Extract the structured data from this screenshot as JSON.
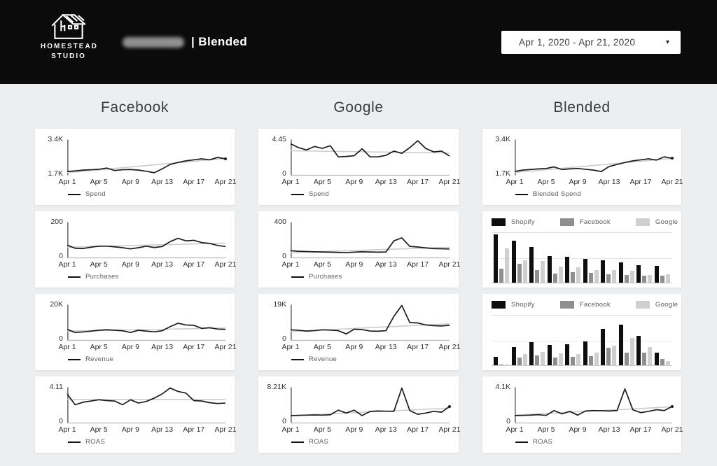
{
  "header": {
    "logo_line1": "HOMESTEAD",
    "logo_line2": "STUDIO",
    "report_title": "| Blended",
    "date_range": "Apr 1, 2020 - Apr 21, 2020"
  },
  "colors": {
    "page_bg": "#eceef0",
    "header_bg": "#0b0b0b",
    "card_bg": "#ffffff",
    "series_line": "#1b1b1b",
    "trend_line": "#cccccc",
    "axis_line": "#4a4a4a",
    "baseline": "#b9b9b9",
    "bar_shopify": "#0e0e0e",
    "bar_facebook": "#8f8f8f",
    "bar_google": "#cfcfcf"
  },
  "columns": [
    {
      "title": "Facebook",
      "chart_ids": [
        "fb_spend",
        "fb_purchases",
        "fb_revenue",
        "fb_roas"
      ]
    },
    {
      "title": "Google",
      "chart_ids": [
        "g_spend",
        "g_purchases",
        "g_revenue",
        "g_roas"
      ]
    },
    {
      "title": "Blended",
      "chart_ids": [
        "bl_spend",
        "bl_mix_top",
        "bl_mix_bottom",
        "bl_roas"
      ]
    }
  ],
  "chart_data": [
    {
      "id": "fb_spend",
      "type": "line",
      "column": "Facebook",
      "legend": "Spend",
      "y_top_label": "3.4K",
      "y_bottom_label": "1.7K",
      "y_min": 1.7,
      "y_max": 3.4,
      "x_ticks": [
        "Apr 1",
        "Apr 5",
        "Apr 9",
        "Apr 13",
        "Apr 17",
        "Apr 21"
      ],
      "values": [
        1.85,
        1.88,
        1.92,
        1.94,
        1.96,
        2.02,
        1.9,
        1.94,
        1.95,
        1.92,
        1.86,
        1.79,
        1.98,
        2.2,
        2.3,
        2.38,
        2.43,
        2.48,
        2.43,
        2.55,
        2.48
      ],
      "trend": [
        1.79,
        2.5
      ],
      "baseline": false,
      "end_dot": true
    },
    {
      "id": "fb_purchases",
      "type": "line",
      "column": "Facebook",
      "legend": "Purchases",
      "y_top_label": "200",
      "y_bottom_label": "0",
      "y_min": 0,
      "y_max": 200,
      "x_ticks": [
        "Apr 1",
        "Apr 5",
        "Apr 9",
        "Apr 13",
        "Apr 17",
        "Apr 21"
      ],
      "values": [
        70,
        52,
        50,
        58,
        64,
        64,
        60,
        55,
        48,
        55,
        64,
        56,
        62,
        90,
        110,
        95,
        98,
        85,
        80,
        68,
        62
      ],
      "trend": [
        58,
        82
      ],
      "baseline": true,
      "end_dot": false
    },
    {
      "id": "fb_revenue",
      "type": "line",
      "column": "Facebook",
      "legend": "Revenue",
      "y_top_label": "20K",
      "y_bottom_label": "0",
      "y_min": 0,
      "y_max": 20,
      "x_ticks": [
        "Apr 1",
        "Apr 5",
        "Apr 9",
        "Apr 13",
        "Apr 17",
        "Apr 21"
      ],
      "values": [
        6.0,
        4.2,
        4.5,
        5.0,
        5.5,
        5.8,
        5.5,
        5.2,
        4.2,
        5.5,
        5.0,
        4.6,
        5.2,
        7.6,
        9.6,
        8.6,
        8.4,
        6.6,
        7.0,
        6.2,
        6.0
      ],
      "trend": [
        5.0,
        6.8
      ],
      "baseline": true,
      "end_dot": false
    },
    {
      "id": "fb_roas",
      "type": "line",
      "column": "Facebook",
      "legend": "ROAS",
      "y_top_label": "4.11",
      "y_bottom_label": "0",
      "y_min": 0,
      "y_max": 4.11,
      "x_ticks": [
        "Apr 1",
        "Apr 5",
        "Apr 9",
        "Apr 13",
        "Apr 17",
        "Apr 21"
      ],
      "values": [
        3.4,
        2.1,
        2.4,
        2.55,
        2.7,
        2.6,
        2.55,
        2.1,
        2.7,
        2.3,
        2.5,
        2.9,
        3.4,
        4.11,
        3.7,
        3.5,
        2.6,
        2.55,
        2.35,
        2.25,
        2.3
      ],
      "trend": [
        2.72,
        2.72
      ],
      "baseline": true,
      "end_dot": false
    },
    {
      "id": "g_spend",
      "type": "line",
      "column": "Google",
      "legend": "Spend",
      "y_top_label": "4.45",
      "y_bottom_label": "0",
      "y_min": 0,
      "y_max": 4.45,
      "x_ticks": [
        "Apr 1",
        "Apr 5",
        "Apr 9",
        "Apr 13",
        "Apr 17",
        "Apr 21"
      ],
      "values": [
        4.0,
        3.5,
        3.2,
        3.65,
        3.4,
        3.75,
        2.3,
        2.35,
        2.45,
        3.35,
        2.3,
        2.3,
        2.5,
        3.05,
        2.75,
        3.5,
        4.4,
        3.4,
        2.95,
        3.05,
        2.4
      ],
      "trend": [
        3.1,
        2.8
      ],
      "baseline": true,
      "end_dot": false
    },
    {
      "id": "g_purchases",
      "type": "line",
      "column": "Google",
      "legend": "Purchases",
      "y_top_label": "400",
      "y_bottom_label": "0",
      "y_min": 0,
      "y_max": 400,
      "x_ticks": [
        "Apr 1",
        "Apr 5",
        "Apr 9",
        "Apr 13",
        "Apr 17",
        "Apr 21"
      ],
      "values": [
        75,
        68,
        65,
        62,
        60,
        58,
        55,
        52,
        58,
        62,
        60,
        58,
        60,
        190,
        225,
        125,
        118,
        108,
        100,
        97,
        95
      ],
      "trend": [
        52,
        115
      ],
      "baseline": true,
      "end_dot": false
    },
    {
      "id": "g_revenue",
      "type": "line",
      "column": "Google",
      "legend": "Revenue",
      "y_top_label": "19K",
      "y_bottom_label": "0",
      "y_min": 0,
      "y_max": 19,
      "x_ticks": [
        "Apr 1",
        "Apr 5",
        "Apr 9",
        "Apr 13",
        "Apr 17",
        "Apr 21"
      ],
      "values": [
        5.5,
        5.2,
        4.8,
        5.0,
        5.5,
        5.3,
        5.0,
        3.2,
        5.8,
        5.6,
        4.8,
        4.7,
        5.0,
        13.0,
        19.0,
        9.5,
        9.3,
        8.2,
        7.8,
        7.6,
        8.0
      ],
      "trend": [
        4.5,
        8.8
      ],
      "baseline": true,
      "end_dot": false
    },
    {
      "id": "g_roas",
      "type": "line",
      "column": "Google",
      "legend": "ROAS",
      "y_top_label": "8.21K",
      "y_bottom_label": "0",
      "y_min": 0,
      "y_max": 8.21,
      "x_ticks": [
        "Apr 1",
        "Apr 5",
        "Apr 9",
        "Apr 13",
        "Apr 17",
        "Apr 21"
      ],
      "values": [
        1.6,
        1.65,
        1.7,
        1.75,
        1.7,
        1.8,
        2.9,
        2.2,
        2.9,
        1.6,
        2.6,
        2.7,
        2.65,
        2.6,
        8.2,
        2.8,
        1.9,
        2.2,
        2.6,
        2.4,
        3.8
      ],
      "trend": [
        1.55,
        3.4
      ],
      "baseline": true,
      "end_dot": true
    },
    {
      "id": "bl_spend",
      "type": "line",
      "column": "Blended",
      "legend": "Blended Spend",
      "y_top_label": "3.4K",
      "y_bottom_label": "1.7K",
      "y_min": 1.7,
      "y_max": 3.4,
      "x_ticks": [
        "Apr 1",
        "Apr 5",
        "Apr 9",
        "Apr 13",
        "Apr 17",
        "Apr 21"
      ],
      "values": [
        1.85,
        1.92,
        1.95,
        1.98,
        2.0,
        2.08,
        1.95,
        1.98,
        2.0,
        1.96,
        1.92,
        1.85,
        2.1,
        2.2,
        2.3,
        2.38,
        2.43,
        2.48,
        2.42,
        2.58,
        2.5
      ],
      "trend": [
        1.8,
        2.5
      ],
      "baseline": false,
      "end_dot": true
    },
    {
      "id": "bl_mix_top",
      "type": "bar",
      "column": "Blended",
      "x_note": "10 unlabeled date groups",
      "units": "relative_percent_of_plot_height",
      "gridlines": [
        50,
        100
      ],
      "series": [
        {
          "name": "Shopify",
          "color": "#0e0e0e",
          "values": [
            97,
            84,
            72,
            53,
            52,
            48,
            45,
            41,
            35,
            34
          ]
        },
        {
          "name": "Facebook",
          "color": "#8f8f8f",
          "values": [
            28,
            38,
            26,
            19,
            21,
            20,
            17,
            15,
            14,
            14
          ]
        },
        {
          "name": "Google",
          "color": "#cfcfcf",
          "values": [
            69,
            45,
            44,
            32,
            31,
            26,
            25,
            24,
            16,
            17
          ]
        }
      ]
    },
    {
      "id": "bl_mix_bottom",
      "type": "bar",
      "column": "Blended",
      "x_note": "10 unlabeled date groups",
      "units": "relative_percent_of_plot_height",
      "gridlines": [
        50,
        100
      ],
      "series": [
        {
          "name": "Shopify",
          "color": "#0e0e0e",
          "values": [
            17,
            37,
            47,
            41,
            42,
            48,
            73,
            82,
            59,
            26
          ]
        },
        {
          "name": "Facebook",
          "color": "#8f8f8f",
          "values": [
            2,
            15,
            20,
            16,
            17,
            19,
            35,
            26,
            25,
            12
          ]
        },
        {
          "name": "Google",
          "color": "#cfcfcf",
          "values": [
            2,
            22,
            27,
            24,
            23,
            26,
            39,
            55,
            36,
            9
          ]
        }
      ]
    },
    {
      "id": "bl_roas",
      "type": "line",
      "column": "Blended",
      "legend": "ROAS",
      "y_top_label": "4.1K",
      "y_bottom_label": "0",
      "y_min": 0,
      "y_max": 4.1,
      "x_ticks": [
        "Apr 1",
        "Apr 5",
        "Apr 9",
        "Apr 13",
        "Apr 17",
        "Apr 21"
      ],
      "values": [
        0.8,
        0.82,
        0.85,
        0.9,
        0.82,
        1.4,
        1.0,
        1.3,
        0.85,
        1.35,
        1.4,
        1.38,
        1.35,
        1.4,
        4.0,
        1.5,
        1.15,
        1.3,
        1.5,
        1.4,
        1.9
      ],
      "trend": [
        0.85,
        1.85
      ],
      "baseline": true,
      "end_dot": true
    }
  ]
}
